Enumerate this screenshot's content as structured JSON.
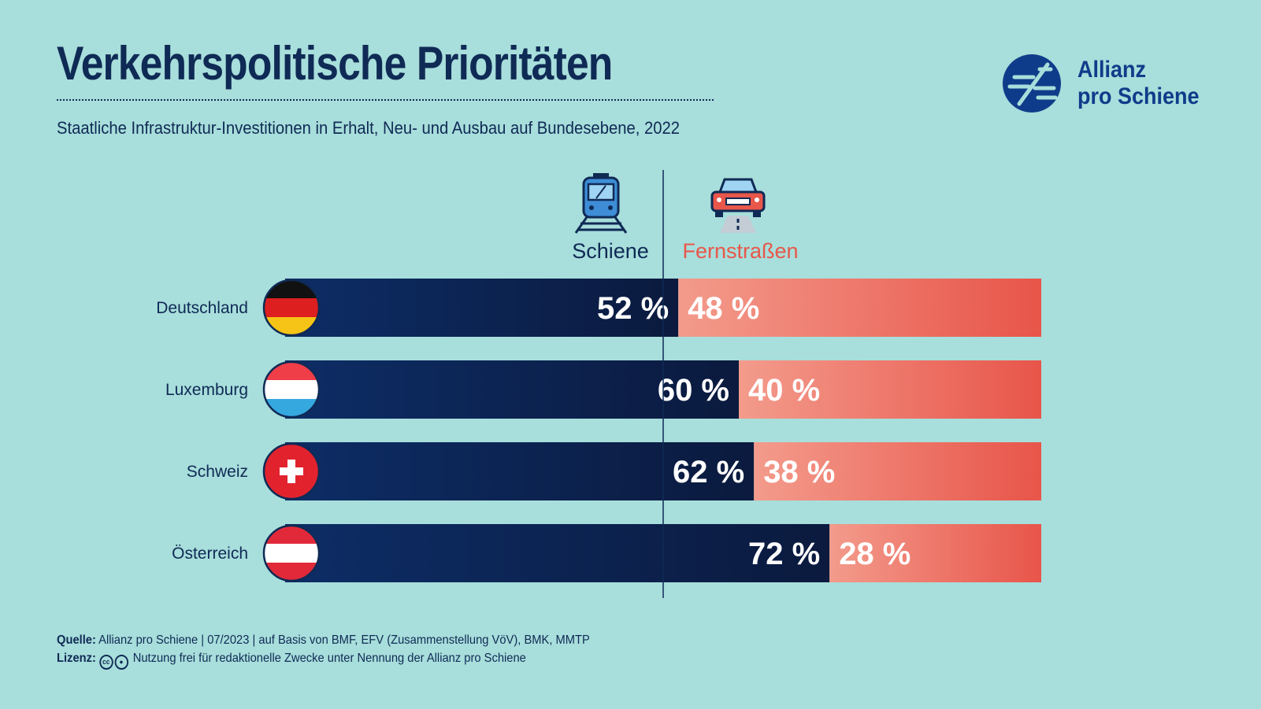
{
  "title": "Verkehrspolitische Prioritäten",
  "subtitle": "Staatliche Infrastruktur-Investitionen in Erhalt, Neu- und Ausbau auf Bundesebene, 2022",
  "logo": {
    "line1": "Allianz",
    "line2": "pro Schiene",
    "color": "#0f3c8a"
  },
  "footer": {
    "source_label": "Quelle:",
    "source_text": "Allianz pro Schiene | 07/2023 | auf Basis von BMF, EFV (Zusammenstellung VöV), BMK, MMTP",
    "license_label": "Lizenz:",
    "license_text": "Nutzung frei für redaktionelle Zwecke unter Nennung der Allianz pro Schiene",
    "license_icons": [
      "cc-icon",
      "by-icon"
    ]
  },
  "chart_data": {
    "type": "bar",
    "orientation": "horizontal-stacked-100",
    "title": "Verkehrspolitische Prioritäten",
    "categories": [
      "Deutschland",
      "Luxemburg",
      "Schweiz",
      "Österreich"
    ],
    "series": [
      {
        "name": "Schiene",
        "values": [
          52,
          60,
          62,
          72
        ],
        "color": "#0d2a5c",
        "icon": "train-icon"
      },
      {
        "name": "Fernstraßen",
        "values": [
          48,
          40,
          38,
          28
        ],
        "color": "#e8574a",
        "icon": "car-icon"
      }
    ],
    "unit": "%",
    "value_labels": [
      [
        "52 %",
        "60 %",
        "62 %",
        "72 %"
      ],
      [
        "48 %",
        "40 %",
        "38 %",
        "28 %"
      ]
    ],
    "flags": [
      "germany-flag-icon",
      "luxembourg-flag-icon",
      "switzerland-flag-icon",
      "austria-flag-icon"
    ],
    "reference_line": 50
  }
}
